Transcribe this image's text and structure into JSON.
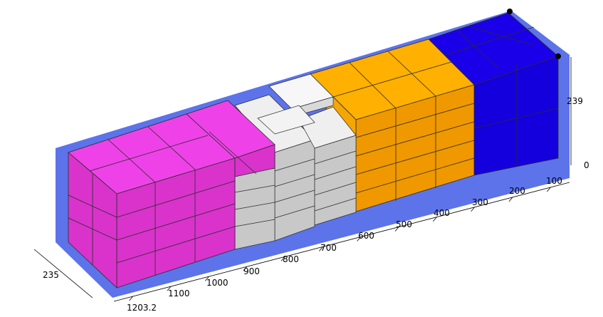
{
  "scene": {
    "container_color": "#5c73ea",
    "grid_line_color": "#2b2b2b",
    "corner_marker_color": "#000000"
  },
  "axis_length": {
    "tick_labels": [
      "100",
      "200",
      "300",
      "400",
      "500",
      "600",
      "700",
      "800",
      "900",
      "1000",
      "1100",
      "1203.2"
    ]
  },
  "axis_width": {
    "tick_label": "235"
  },
  "axis_height": {
    "tick_labels": [
      "239",
      "0"
    ]
  },
  "cargo_groups": [
    {
      "name": "blue",
      "top": "#1a00e8",
      "side": "#1400dc"
    },
    {
      "name": "orange",
      "top": "#ffb000",
      "side": "#ef9800"
    },
    {
      "name": "white",
      "top": "#f5f5f5",
      "side": "#c8c8c8"
    },
    {
      "name": "magenta",
      "top": "#ee42e8",
      "side": "#d933cc"
    }
  ]
}
